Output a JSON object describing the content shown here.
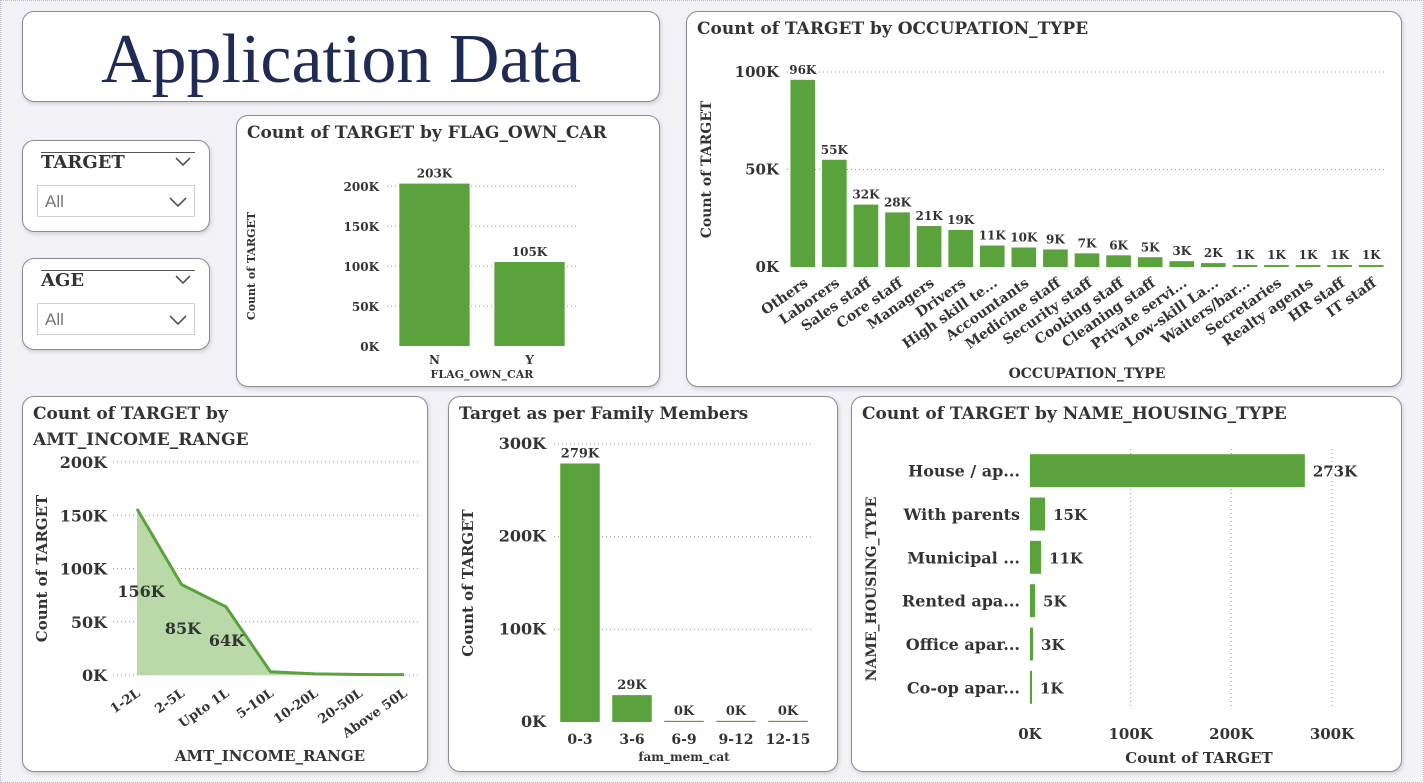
{
  "title": "Application Data",
  "colors": {
    "bar": "#5aa23c",
    "area_fill": "#b9d9a8",
    "title": "#1f2a55"
  },
  "slicers": [
    {
      "label": "TARGET",
      "value": "All"
    },
    {
      "label": "AGE",
      "value": "All"
    }
  ],
  "chart_data": [
    {
      "id": "own_car",
      "type": "bar",
      "title": "Count of TARGET by FLAG_OWN_CAR",
      "xlabel": "FLAG_OWN_CAR",
      "ylabel": "Count of TARGET",
      "categories": [
        "N",
        "Y"
      ],
      "values": [
        203000,
        105000
      ],
      "data_labels": [
        "203K",
        "105K"
      ],
      "ylim": [
        0,
        200000
      ],
      "yticks": [
        0,
        50000,
        100000,
        150000,
        200000
      ],
      "ytick_labels": [
        "0K",
        "50K",
        "100K",
        "150K",
        "200K"
      ],
      "grid": true
    },
    {
      "id": "occupation",
      "type": "bar",
      "title": "Count of TARGET by OCCUPATION_TYPE",
      "xlabel": "OCCUPATION_TYPE",
      "ylabel": "Count of TARGET",
      "categories": [
        "Others",
        "Laborers",
        "Sales staff",
        "Core staff",
        "Managers",
        "Drivers",
        "High skill te...",
        "Accountants",
        "Medicine staff",
        "Security staff",
        "Cooking staff",
        "Cleaning staff",
        "Private servi...",
        "Low-skill La...",
        "Waiters/bar...",
        "Secretaries",
        "Realty agents",
        "HR staff",
        "IT staff"
      ],
      "values": [
        96000,
        55000,
        32000,
        28000,
        21000,
        19000,
        11000,
        10000,
        9000,
        7000,
        6000,
        5000,
        3000,
        2000,
        1000,
        1000,
        1000,
        1000,
        1000
      ],
      "data_labels": [
        "96K",
        "55K",
        "32K",
        "28K",
        "21K",
        "19K",
        "11K",
        "10K",
        "9K",
        "7K",
        "6K",
        "5K",
        "3K",
        "2K",
        "1K",
        "1K",
        "1K",
        "1K",
        "1K"
      ],
      "ylim": [
        0,
        100000
      ],
      "yticks": [
        0,
        50000,
        100000
      ],
      "ytick_labels": [
        "0K",
        "50K",
        "100K"
      ],
      "grid": true
    },
    {
      "id": "income",
      "type": "area",
      "title": "Count of TARGET by AMT_INCOME_RANGE",
      "xlabel": "AMT_INCOME_RANGE",
      "ylabel": "Count of TARGET",
      "categories": [
        "1-2L",
        "2-5L",
        "Upto 1L",
        "5-10L",
        "10-20L",
        "20-50L",
        "Above 50L"
      ],
      "values": [
        156000,
        85000,
        64000,
        3000,
        1000,
        500,
        300
      ],
      "data_labels": [
        "156K",
        "85K",
        "64K",
        "",
        "",
        "",
        ""
      ],
      "ylim": [
        0,
        200000
      ],
      "yticks": [
        0,
        50000,
        100000,
        150000,
        200000
      ],
      "ytick_labels": [
        "0K",
        "50K",
        "100K",
        "150K",
        "200K"
      ],
      "grid": true
    },
    {
      "id": "family",
      "type": "bar",
      "title": "Target as per Family Members",
      "xlabel": "fam_mem_cat",
      "ylabel": "Count of TARGET",
      "categories": [
        "0-3",
        "3-6",
        "6-9",
        "9-12",
        "12-15"
      ],
      "values": [
        279000,
        29000,
        300,
        100,
        50
      ],
      "data_labels": [
        "279K",
        "29K",
        "0K",
        "0K",
        "0K"
      ],
      "ylim": [
        0,
        300000
      ],
      "yticks": [
        0,
        100000,
        200000,
        300000
      ],
      "ytick_labels": [
        "0K",
        "100K",
        "200K",
        "300K"
      ],
      "grid": true
    },
    {
      "id": "housing",
      "type": "bar",
      "orientation": "horizontal",
      "title": "Count of TARGET by NAME_HOUSING_TYPE",
      "xlabel": "Count of TARGET",
      "ylabel": "NAME_HOUSING_TYPE",
      "categories": [
        "House / ap...",
        "With parents",
        "Municipal ...",
        "Rented apa...",
        "Office apar...",
        "Co-op apar..."
      ],
      "values": [
        273000,
        15000,
        11000,
        5000,
        3000,
        1000
      ],
      "data_labels": [
        "273K",
        "15K",
        "11K",
        "5K",
        "3K",
        "1K"
      ],
      "xlim": [
        0,
        300000
      ],
      "xticks": [
        0,
        100000,
        200000,
        300000
      ],
      "xtick_labels": [
        "0K",
        "100K",
        "200K",
        "300K"
      ],
      "grid": true
    }
  ]
}
